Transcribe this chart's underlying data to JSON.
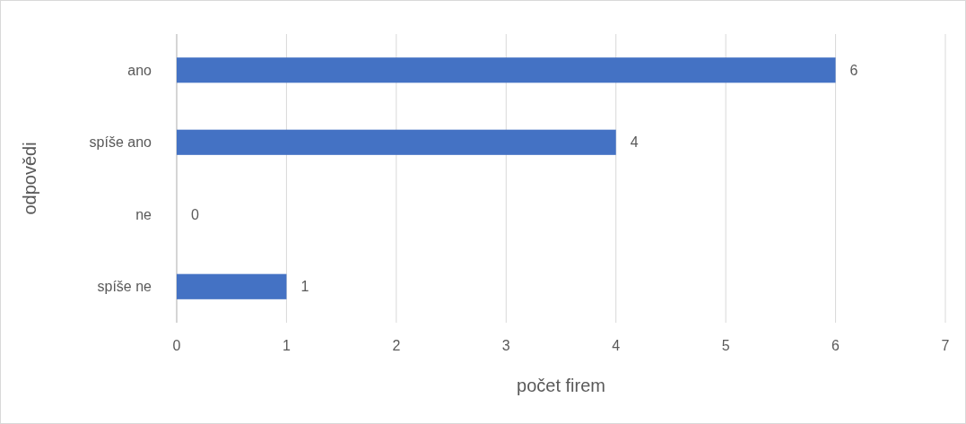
{
  "chart_data": {
    "type": "bar",
    "orientation": "horizontal",
    "xlabel": "počet firem",
    "ylabel": "odpovědi",
    "categories": [
      "ano",
      "spíše ano",
      "ne",
      "spíše ne"
    ],
    "values": [
      6,
      4,
      0,
      1
    ],
    "color": "#4472c4",
    "xlim": [
      0,
      7
    ],
    "xticks": [
      0,
      1,
      2,
      3,
      4,
      5,
      6,
      7
    ],
    "grid": "x",
    "data_labels": true
  }
}
